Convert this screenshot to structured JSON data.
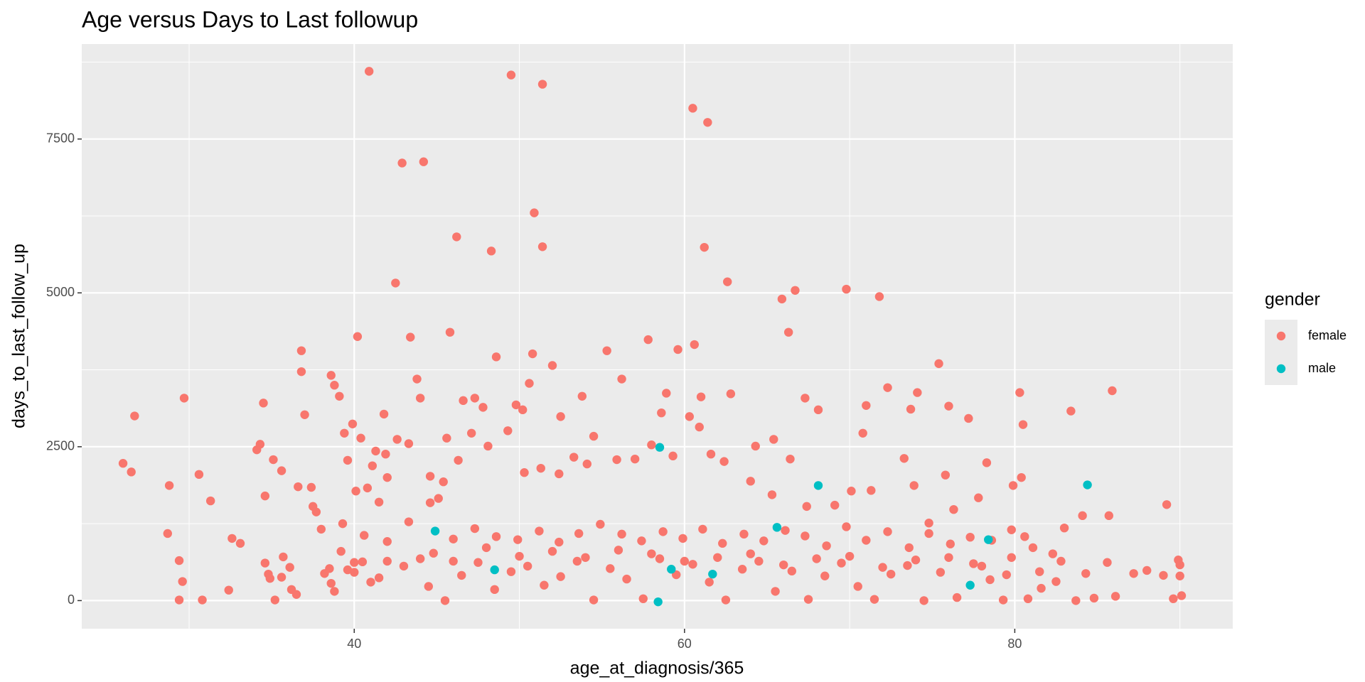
{
  "chart_data": {
    "type": "scatter",
    "title": "Age versus Days to Last followup",
    "x_label": "age_at_diagnosis/365",
    "y_label": "days_to_last_follow_up",
    "legend_title": "gender",
    "legend_position": "right",
    "xlim": [
      23.5,
      93.2
    ],
    "ylim": [
      -457,
      9043
    ],
    "xticks": [
      40,
      60,
      80
    ],
    "yticks": [
      0,
      2500,
      5000,
      7500
    ],
    "x_minor_ticks": [
      30,
      50,
      70,
      90
    ],
    "y_minor_ticks": [
      1250,
      3750,
      6250,
      8750
    ],
    "grid": true,
    "series": [
      {
        "name": "female",
        "color": "#F8766D",
        "x": [
          26,
          26.5,
          26.7,
          28.8,
          28.7,
          29.4,
          29.6,
          29.4,
          29.7,
          30.6,
          30.8,
          31.3,
          32.4,
          32.6,
          33.1,
          34.1,
          34.3,
          34.5,
          34.6,
          34.6,
          34.8,
          34.9,
          35.1,
          35.2,
          35.6,
          35.7,
          35.6,
          36.1,
          36.2,
          36.6,
          36.8,
          36.8,
          37,
          37.4,
          37.5,
          37.7,
          38,
          38.2,
          38.6,
          38.8,
          39.1,
          39.4,
          39.6,
          39.9,
          40.2,
          40.4,
          38.6,
          38.8,
          39.2,
          39.6,
          40,
          40.5,
          40.9,
          40.8,
          41,
          41.3,
          41.5,
          41.8,
          42,
          42.5,
          42.9,
          43.4,
          44.2,
          43.8,
          44,
          44.6,
          45.1,
          45.6,
          45.8,
          46.2,
          46.6,
          47.3,
          47.8,
          48.3,
          48.6,
          49.5,
          49.8,
          50.2,
          50.6,
          50.8,
          50.9,
          51.4,
          51.4,
          52,
          52.5,
          53.8,
          54.5,
          55.3,
          56.2,
          57.8,
          58.6,
          58.9,
          59.6,
          60.3,
          60.6,
          60.5,
          61.4,
          61.2,
          61,
          62.6,
          62.8,
          64.3,
          65.4,
          65.9,
          66.3,
          66.7,
          67.3,
          68.1,
          69.8,
          70.8,
          71,
          71.8,
          72.3,
          73.7,
          74.1,
          75.4,
          76,
          77.2,
          78.3,
          80.3,
          80.5,
          83.4,
          85.9,
          83,
          84.1,
          85.7,
          89.2,
          88,
          89,
          89.9,
          90,
          90,
          89.6,
          90.1,
          87.2,
          86.1,
          83.7,
          84.8,
          82.5,
          81.6,
          80.8,
          79.3,
          79.8,
          80.6,
          79.9,
          80.4,
          77.8,
          76.3,
          75.8,
          74.8,
          73.9,
          73.3,
          71.3,
          70.1,
          69.1,
          67.4,
          66.4,
          65.3,
          64,
          62.4,
          61.6,
          60.9,
          59.3,
          58,
          57,
          55.9,
          54.1,
          53.3,
          52.4,
          51.3,
          50.3,
          49.3,
          48.1,
          47.1,
          46.3,
          45.4,
          44.6,
          43.3,
          42.6,
          41.9,
          41.1,
          40.1,
          39.3,
          40.6,
          42,
          43.3,
          44.8,
          46,
          47.3,
          48.6,
          49.9,
          51.2,
          52.4,
          53.6,
          54.9,
          56.2,
          57.4,
          58.7,
          59.9,
          61.1,
          62.3,
          63.6,
          64.8,
          66.1,
          67.3,
          68.6,
          69.8,
          71,
          72.3,
          73.6,
          74.8,
          76.1,
          77.3,
          78.6,
          79.8,
          81.1,
          82.3,
          36.5,
          38.5,
          40,
          41.5,
          43,
          44.5,
          45.5,
          46.5,
          47.5,
          48.5,
          49.5,
          50.5,
          51.5,
          52.5,
          53.5,
          54.5,
          55.5,
          56.5,
          57.5,
          58.5,
          59.5,
          60.5,
          61.5,
          62.5,
          63.5,
          64.5,
          65.5,
          66.5,
          67.5,
          68.5,
          69.5,
          70.5,
          71.5,
          72.5,
          73.5,
          74.5,
          75.5,
          76.5,
          77.5,
          78.5,
          79.5,
          81.5,
          82.8,
          84.3,
          85.6,
          50,
          52,
          54,
          56,
          58,
          60,
          62,
          64,
          66,
          68,
          48,
          46,
          44,
          42,
          70,
          72,
          74,
          76,
          78
        ],
        "values": [
          2230,
          2090,
          3000,
          1870,
          1090,
          650,
          310,
          10,
          3290,
          2050,
          10,
          1620,
          170,
          1010,
          930,
          2450,
          2540,
          3210,
          1700,
          610,
          430,
          360,
          2290,
          10,
          2110,
          710,
          380,
          540,
          180,
          1850,
          4060,
          3720,
          3020,
          1840,
          1530,
          1440,
          1160,
          440,
          3660,
          3500,
          3320,
          2720,
          2280,
          2870,
          4290,
          2640,
          280,
          150,
          800,
          500,
          620,
          630,
          8600,
          1830,
          300,
          2430,
          1600,
          3030,
          2000,
          5160,
          7110,
          4280,
          7130,
          3600,
          3290,
          2020,
          1660,
          2640,
          4360,
          5910,
          3250,
          3290,
          3140,
          5680,
          3960,
          8540,
          3180,
          3100,
          3530,
          4010,
          6300,
          8390,
          5750,
          3820,
          2990,
          3320,
          2670,
          4060,
          3600,
          4240,
          3050,
          3370,
          4080,
          2990,
          4160,
          8000,
          7770,
          5740,
          3310,
          5180,
          3360,
          2510,
          2620,
          4900,
          4360,
          5040,
          3290,
          3100,
          5060,
          2720,
          3170,
          4940,
          3460,
          3110,
          3380,
          3850,
          3160,
          2960,
          2240,
          3380,
          2860,
          3080,
          3410,
          1180,
          1380,
          1380,
          1560,
          490,
          410,
          660,
          580,
          400,
          30,
          80,
          440,
          70,
          0,
          40,
          310,
          200,
          30,
          10,
          700,
          1040,
          1870,
          2000,
          1670,
          1480,
          2040,
          1260,
          1870,
          2310,
          1790,
          1780,
          1550,
          1530,
          2300,
          1720,
          1940,
          2260,
          2380,
          2820,
          2350,
          2530,
          2300,
          2290,
          2220,
          2330,
          2060,
          2150,
          2080,
          2760,
          2510,
          2720,
          2280,
          1930,
          1590,
          2550,
          2620,
          2380,
          2190,
          1780,
          1250,
          1060,
          960,
          1280,
          770,
          1000,
          1170,
          1040,
          990,
          1130,
          950,
          1090,
          1240,
          1080,
          970,
          1120,
          1010,
          1160,
          930,
          1080,
          970,
          1140,
          1050,
          890,
          1200,
          980,
          1120,
          860,
          1090,
          920,
          1030,
          980,
          1150,
          860,
          760,
          100,
          520,
          460,
          370,
          560,
          230,
          0,
          410,
          620,
          180,
          470,
          560,
          250,
          390,
          640,
          10,
          520,
          350,
          30,
          680,
          420,
          590,
          300,
          10,
          510,
          640,
          150,
          480,
          20,
          400,
          610,
          230,
          20,
          430,
          570,
          0,
          460,
          50,
          600,
          340,
          420,
          470,
          640,
          440,
          620,
          720,
          800,
          700,
          820,
          760,
          640,
          700,
          760,
          580,
          680,
          860,
          640,
          680,
          640,
          720,
          540,
          660,
          700,
          560
        ]
      },
      {
        "name": "male",
        "color": "#00BFC4",
        "x": [
          44.9,
          48.5,
          58.5,
          58.4,
          59.2,
          61.7,
          65.6,
          68.1,
          77.3,
          78.4,
          84.4
        ],
        "values": [
          1130,
          500,
          2490,
          -20,
          510,
          430,
          1190,
          1870,
          250,
          990,
          1880
        ]
      }
    ]
  }
}
